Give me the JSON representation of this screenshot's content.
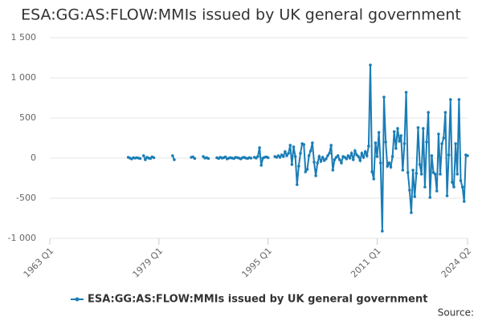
{
  "chart_data": {
    "type": "line",
    "title": "ESA:GG:AS:FLOW:MMIs issued by UK general government",
    "source": "Source:",
    "xlim": [
      1963,
      2024.25
    ],
    "xticks": [
      {
        "value": 1963,
        "label": "1963 Q1"
      },
      {
        "value": 1979,
        "label": "1979 Q1"
      },
      {
        "value": 1995,
        "label": "1995 Q1"
      },
      {
        "value": 2011,
        "label": "2011 Q1"
      },
      {
        "value": 2024.25,
        "label": "2024 Q2"
      }
    ],
    "ylim": [
      -1000,
      1500
    ],
    "yticks": [
      {
        "value": -1000,
        "label": "-1 000"
      },
      -500,
      0,
      500,
      {
        "value": 1000,
        "label": "1 000"
      },
      {
        "value": 1500,
        "label": "1 500"
      }
    ],
    "grid": true,
    "legend": "bottom",
    "x": [
      1974.5,
      1974.75,
      1975,
      1975.25,
      1975.5,
      1975.75,
      1976,
      1976.25,
      1976.5,
      1976.75,
      1977,
      1977.25,
      1977.5,
      1977.75,
      1978,
      1978.25,
      1978.5,
      1981,
      1981.25,
      1981.5,
      1983.75,
      1984,
      1984.25,
      1984.5,
      1985.5,
      1985.75,
      1986,
      1986.25,
      1986.5,
      1987.5,
      1987.75,
      1988,
      1988.25,
      1988.5,
      1988.75,
      1989,
      1989.25,
      1989.5,
      1989.75,
      1990,
      1990.25,
      1990.5,
      1990.75,
      1991,
      1991.25,
      1991.5,
      1991.75,
      1992,
      1992.25,
      1992.5,
      1992.75,
      1993,
      1993.25,
      1993.5,
      1993.75,
      1994,
      1994.25,
      1994.5,
      1994.75,
      1995,
      1995.5,
      1996,
      1996.25,
      1996.5,
      1996.75,
      1997,
      1997.25,
      1997.5,
      1997.75,
      1998,
      1998.25,
      1998.5,
      1998.75,
      1999,
      1999.25,
      1999.5,
      1999.75,
      2000,
      2000.25,
      2000.5,
      2000.75,
      2001,
      2001.25,
      2001.5,
      2001.75,
      2002,
      2002.25,
      2002.5,
      2002.75,
      2003,
      2003.25,
      2003.5,
      2003.75,
      2004,
      2004.25,
      2004.5,
      2004.75,
      2005,
      2005.25,
      2005.5,
      2005.75,
      2006,
      2006.25,
      2006.5,
      2006.75,
      2007,
      2007.25,
      2007.5,
      2007.75,
      2008,
      2008.25,
      2008.5,
      2008.75,
      2009,
      2009.25,
      2009.5,
      2009.75,
      2010,
      2010.25,
      2010.5,
      2010.75,
      2011,
      2011.25,
      2011.5,
      2011.75,
      2012,
      2012.25,
      2012.5,
      2012.75,
      2013,
      2013.25,
      2013.5,
      2013.75,
      2014,
      2014.25,
      2014.5,
      2014.75,
      2015,
      2015.25,
      2015.5,
      2015.75,
      2016,
      2016.25,
      2016.5,
      2016.75,
      2017,
      2017.25,
      2017.5,
      2017.75,
      2018,
      2018.25,
      2018.5,
      2018.75,
      2019,
      2019.25,
      2019.5,
      2019.75,
      2020,
      2020.25,
      2020.5,
      2020.75,
      2021,
      2021.25,
      2021.5,
      2021.75,
      2022,
      2022.25,
      2022.5,
      2022.75,
      2023,
      2023.25,
      2023.5,
      2023.75,
      2024,
      2024.25
    ],
    "series": [
      {
        "name": "ESA:GG:AS:FLOW:MMIs issued by UK general government",
        "color": "#1a7db6",
        "values": [
          10,
          0,
          -10,
          5,
          0,
          5,
          0,
          -5,
          null,
          30,
          -20,
          10,
          0,
          -5,
          15,
          5,
          null,
          30,
          -20,
          null,
          10,
          15,
          -5,
          null,
          20,
          0,
          5,
          -5,
          null,
          5,
          -5,
          10,
          0,
          5,
          15,
          -10,
          0,
          5,
          0,
          -5,
          10,
          5,
          0,
          -10,
          5,
          10,
          0,
          -5,
          5,
          0,
          null,
          10,
          0,
          20,
          130,
          -90,
          0,
          10,
          15,
          5,
          null,
          20,
          10,
          30,
          10,
          40,
          20,
          80,
          30,
          60,
          160,
          -80,
          140,
          20,
          -330,
          -100,
          60,
          180,
          170,
          -170,
          -140,
          30,
          90,
          190,
          -50,
          -220,
          -60,
          20,
          -40,
          10,
          -30,
          -10,
          30,
          60,
          160,
          -150,
          -20,
          10,
          30,
          -20,
          -60,
          20,
          10,
          -10,
          30,
          0,
          60,
          -20,
          90,
          40,
          20,
          -30,
          60,
          10,
          80,
          30,
          150,
          1160,
          -170,
          -260,
          190,
          20,
          320,
          -60,
          -910,
          760,
          200,
          -100,
          -60,
          -110,
          20,
          330,
          120,
          370,
          210,
          280,
          -150,
          180,
          820,
          -180,
          -400,
          -680,
          -150,
          -480,
          -190,
          380,
          -80,
          -200,
          370,
          -360,
          200,
          570,
          -490,
          30,
          -180,
          -200,
          -410,
          300,
          -200,
          180,
          250,
          570,
          -470,
          40,
          730,
          -300,
          -360,
          180,
          -200,
          730,
          -280,
          -360,
          -540,
          40,
          30
        ]
      }
    ]
  }
}
